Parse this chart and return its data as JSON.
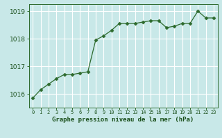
{
  "x": [
    0,
    1,
    2,
    3,
    4,
    5,
    6,
    7,
    8,
    9,
    10,
    11,
    12,
    13,
    14,
    15,
    16,
    17,
    18,
    19,
    20,
    21,
    22,
    23
  ],
  "y": [
    1015.85,
    1016.15,
    1016.35,
    1016.55,
    1016.7,
    1016.7,
    1016.75,
    1016.8,
    1017.95,
    1018.1,
    1018.3,
    1018.55,
    1018.55,
    1018.55,
    1018.6,
    1018.65,
    1018.65,
    1018.4,
    1018.45,
    1018.55,
    1018.55,
    1019.0,
    1018.75,
    1018.75
  ],
  "line_color": "#2d6a2d",
  "marker": "D",
  "marker_size": 2.5,
  "bg_color": "#c8e8e8",
  "grid_color": "#ffffff",
  "xlabel": "Graphe pression niveau de la mer (hPa)",
  "xlabel_color": "#1a4f1a",
  "tick_color": "#1a4f1a",
  "axis_color": "#2d6a2d",
  "ylim": [
    1015.5,
    1019.25
  ],
  "yticks": [
    1016,
    1017,
    1018,
    1019
  ],
  "xlim": [
    -0.5,
    23.5
  ],
  "xticks": [
    0,
    1,
    2,
    3,
    4,
    5,
    6,
    7,
    8,
    9,
    10,
    11,
    12,
    13,
    14,
    15,
    16,
    17,
    18,
    19,
    20,
    21,
    22,
    23
  ]
}
